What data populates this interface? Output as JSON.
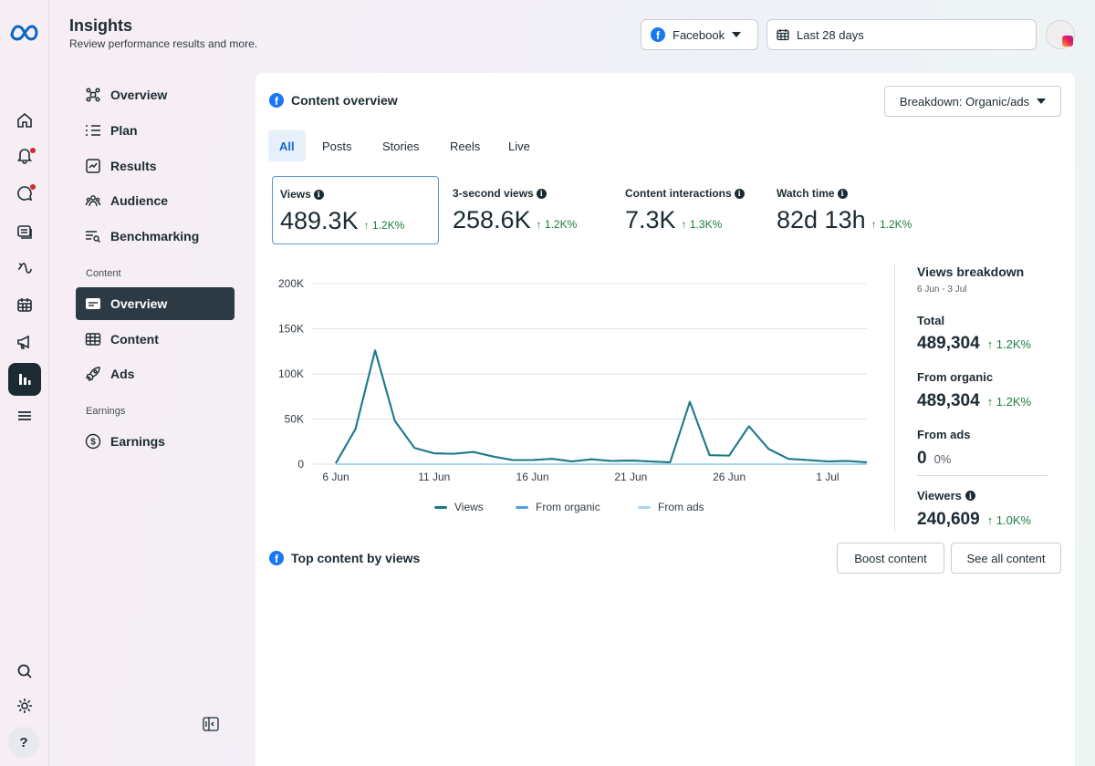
{
  "header": {
    "title": "Insights",
    "subtitle": "Review performance results and more.",
    "platform_label": "Facebook",
    "date_range_label": "Last 28 days"
  },
  "rail": {
    "items": [
      "home-icon",
      "notifications-icon",
      "messages-icon",
      "posts-icon",
      "activity-icon",
      "calendar-icon",
      "ads-icon",
      "insights-icon",
      "menu-icon",
      "search-icon",
      "settings-icon"
    ],
    "help_label": "?"
  },
  "nav": {
    "items": [
      {
        "label": "Overview",
        "icon": "overview-icon"
      },
      {
        "label": "Plan",
        "icon": "plan-icon"
      },
      {
        "label": "Results",
        "icon": "results-icon"
      },
      {
        "label": "Audience",
        "icon": "audience-icon"
      },
      {
        "label": "Benchmarking",
        "icon": "benchmarking-icon"
      }
    ],
    "content_section": "Content",
    "content_items": [
      {
        "label": "Overview",
        "icon": "content-overview-icon",
        "active": true
      },
      {
        "label": "Content",
        "icon": "content-table-icon"
      },
      {
        "label": "Ads",
        "icon": "rocket-icon"
      }
    ],
    "earnings_section": "Earnings",
    "earnings_items": [
      {
        "label": "Earnings",
        "icon": "dollar-circle-icon"
      }
    ]
  },
  "content_overview": {
    "title": "Content overview",
    "breakdown_button": "Breakdown: Organic/ads",
    "tabs": [
      "All",
      "Posts",
      "Stories",
      "Reels",
      "Live"
    ],
    "active_tab": "All",
    "metrics": [
      {
        "label": "Views",
        "value": "489.3K",
        "change": "↑ 1.2K%"
      },
      {
        "label": "3-second views",
        "value": "258.6K",
        "change": "↑ 1.2K%"
      },
      {
        "label": "Content interactions",
        "value": "7.3K",
        "change": "↑ 1.3K%"
      },
      {
        "label": "Watch time",
        "value": "82d 13h",
        "change": "↑ 1.2K%"
      }
    ]
  },
  "chart_data": {
    "type": "line",
    "x": [
      "6 Jun",
      "7 Jun",
      "8 Jun",
      "9 Jun",
      "10 Jun",
      "11 Jun",
      "12 Jun",
      "13 Jun",
      "14 Jun",
      "15 Jun",
      "16 Jun",
      "17 Jun",
      "18 Jun",
      "19 Jun",
      "20 Jun",
      "21 Jun",
      "22 Jun",
      "23 Jun",
      "24 Jun",
      "25 Jun",
      "26 Jun",
      "27 Jun",
      "28 Jun",
      "29 Jun",
      "30 Jun",
      "1 Jul",
      "2 Jul",
      "3 Jul"
    ],
    "x_tick_labels": [
      "6 Jun",
      "11 Jun",
      "16 Jun",
      "21 Jun",
      "26 Jun",
      "1 Jul"
    ],
    "y_tick_labels": [
      "0",
      "50K",
      "100K",
      "150K",
      "200K"
    ],
    "ylim": [
      0,
      200000
    ],
    "series": [
      {
        "name": "Views",
        "color": "#1e7a86",
        "values": [
          1000,
          39000,
          126000,
          48000,
          18000,
          12000,
          11500,
          13500,
          8500,
          4500,
          4500,
          6000,
          3000,
          5500,
          3500,
          4000,
          3000,
          2000,
          69000,
          10000,
          9500,
          42000,
          17000,
          6000,
          4500,
          3000,
          3500,
          2000
        ]
      },
      {
        "name": "From organic",
        "color": "#4aa1dd",
        "values": [
          1000,
          39000,
          126000,
          48000,
          18000,
          12000,
          11500,
          13500,
          8500,
          4500,
          4500,
          6000,
          3000,
          5500,
          3500,
          4000,
          3000,
          2000,
          69000,
          10000,
          9500,
          42000,
          17000,
          6000,
          4500,
          3000,
          3500,
          2000
        ]
      },
      {
        "name": "From ads",
        "color": "#a8d8ef",
        "values": [
          0,
          0,
          0,
          0,
          0,
          0,
          0,
          0,
          0,
          0,
          0,
          0,
          0,
          0,
          0,
          0,
          0,
          0,
          0,
          0,
          0,
          0,
          0,
          0,
          0,
          0,
          0,
          0
        ]
      }
    ],
    "grid": true,
    "legend": "bottom-center"
  },
  "breakdown": {
    "title": "Views breakdown",
    "date_range": "6 Jun - 3 Jul",
    "total_label": "Total",
    "total_value": "489,304",
    "total_change": "↑ 1.2K%",
    "organic_label": "From organic",
    "organic_value": "489,304",
    "organic_change": "↑ 1.2K%",
    "ads_label": "From ads",
    "ads_value": "0",
    "ads_change": "0%",
    "viewers_label": "Viewers",
    "viewers_value": "240,609",
    "viewers_change": "↑ 1.0K%"
  },
  "top_content": {
    "title": "Top content by views",
    "boost_button": "Boost content",
    "see_all_button": "See all content"
  },
  "colors": {
    "accent_blue": "#1877f2",
    "chart_line": "#1e7a86",
    "positive": "#1c7d3d",
    "dark": "#1c2b33"
  }
}
